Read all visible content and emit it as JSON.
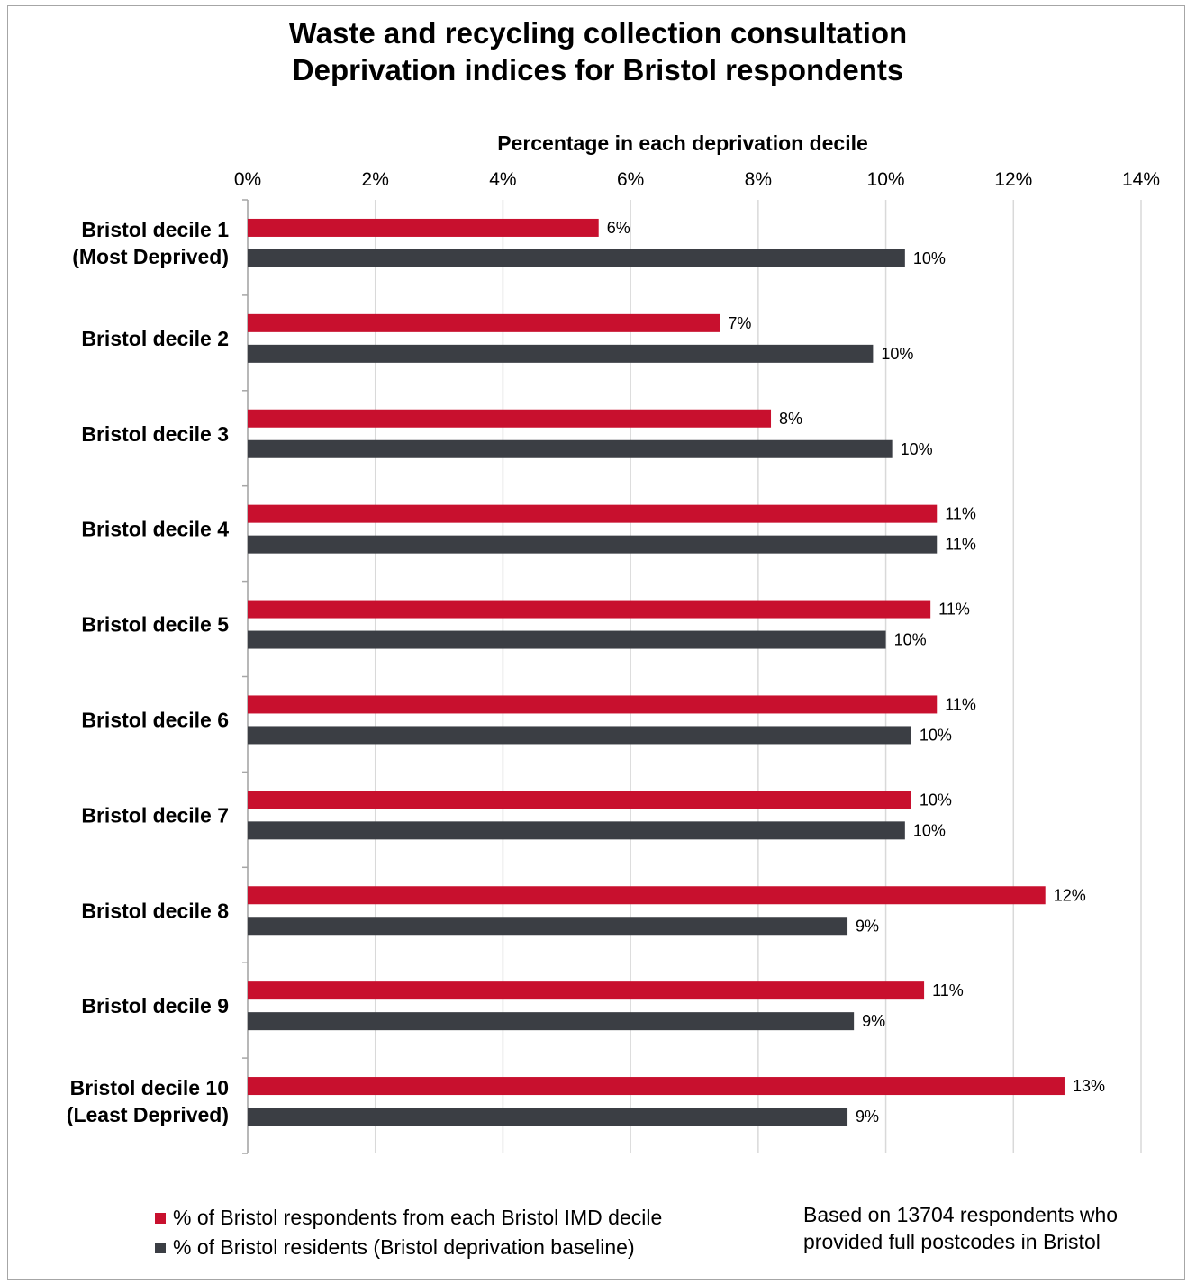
{
  "chart_data": {
    "type": "bar",
    "orientation": "horizontal",
    "title": "Waste and recycling collection consultation",
    "subtitle": "Deprivation indices for Bristol respondents",
    "xlabel": "Percentage in each deprivation decile",
    "ylabel": "",
    "xlim": [
      0,
      14
    ],
    "x_ticks": [
      "0%",
      "2%",
      "4%",
      "6%",
      "8%",
      "10%",
      "12%",
      "14%"
    ],
    "grid": true,
    "legend_position": "bottom-left",
    "categories": [
      [
        "Bristol decile 1",
        "(Most Deprived)"
      ],
      [
        "Bristol decile 2"
      ],
      [
        "Bristol decile 3"
      ],
      [
        "Bristol decile 4"
      ],
      [
        "Bristol decile 5"
      ],
      [
        "Bristol decile 6"
      ],
      [
        "Bristol decile 7"
      ],
      [
        "Bristol decile 8"
      ],
      [
        "Bristol decile 9"
      ],
      [
        "Bristol decile 10",
        "(Least Deprived)"
      ]
    ],
    "series": [
      {
        "name": "% of Bristol respondents from each Bristol IMD decile",
        "color": "#c8102e",
        "values": [
          5.5,
          7.4,
          8.2,
          10.8,
          10.7,
          10.8,
          10.4,
          12.5,
          10.6,
          12.8
        ],
        "labels": [
          "6%",
          "7%",
          "8%",
          "11%",
          "11%",
          "11%",
          "10%",
          "12%",
          "11%",
          "13%"
        ]
      },
      {
        "name": "% of Bristol residents (Bristol deprivation baseline)",
        "color": "#3b3e44",
        "values": [
          10.3,
          9.8,
          10.1,
          10.8,
          10.0,
          10.4,
          10.3,
          9.4,
          9.5,
          9.4
        ],
        "labels": [
          "10%",
          "10%",
          "10%",
          "11%",
          "10%",
          "10%",
          "10%",
          "9%",
          "9%",
          "9%"
        ]
      }
    ]
  },
  "note": {
    "line1": "Based on 13704 respondents who",
    "line2": "provided full postcodes in Bristol"
  }
}
